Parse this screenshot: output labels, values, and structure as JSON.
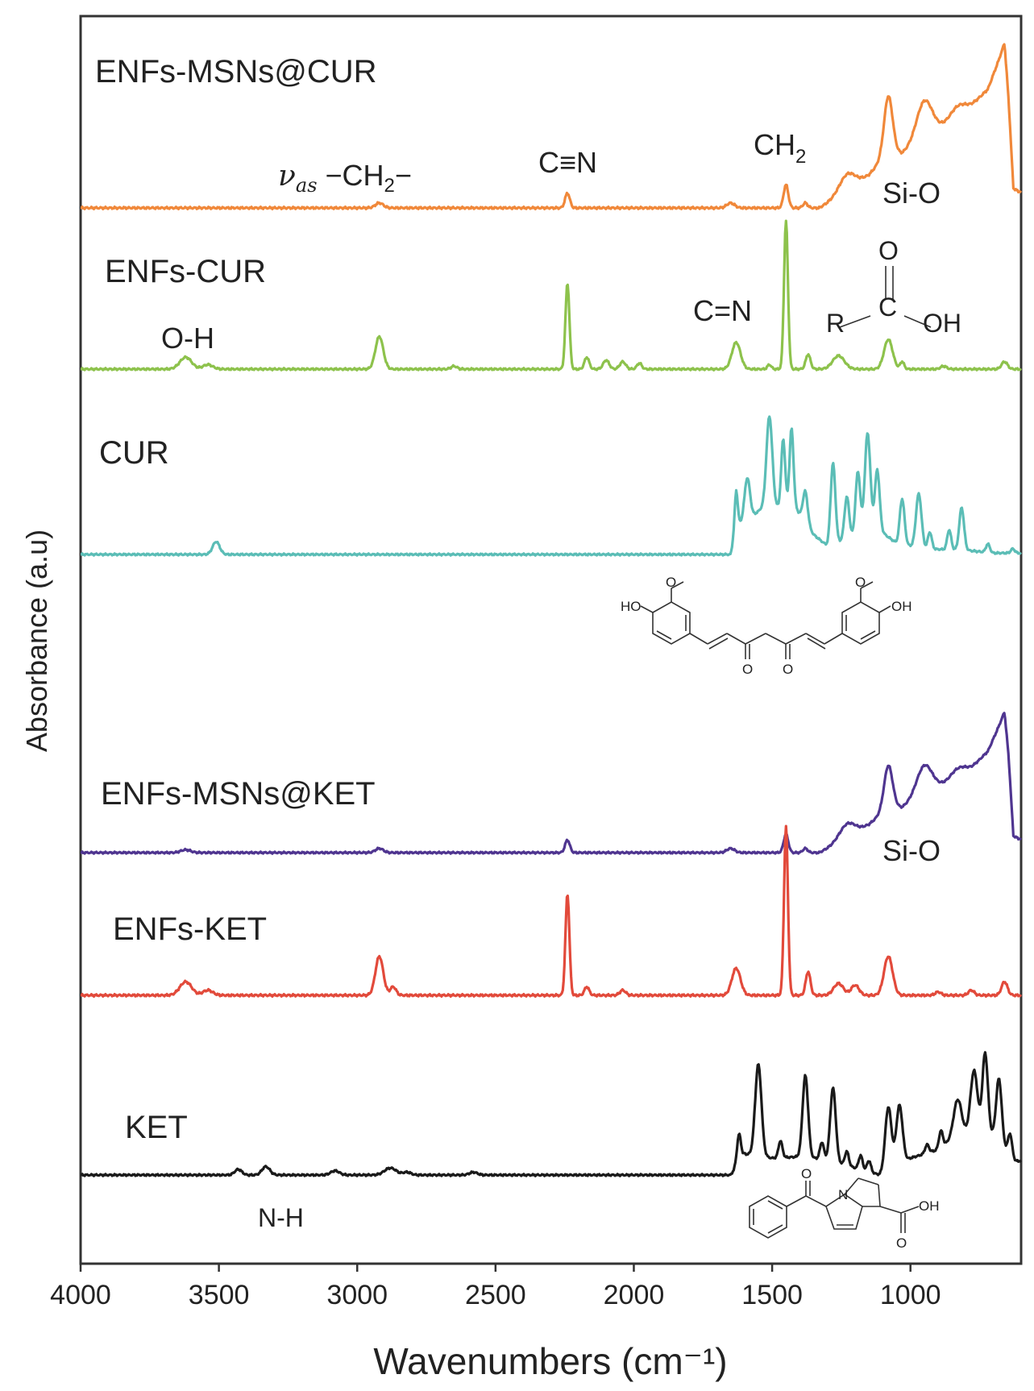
{
  "chart_data": {
    "type": "line",
    "xlabel": "Wavenumbers (cm⁻¹)",
    "ylabel": "Absorbance  (a.u)",
    "xlim": [
      4000,
      600
    ],
    "x_reversed": true,
    "x_ticks": [
      4000,
      3500,
      3000,
      2500,
      2000,
      1500,
      1000
    ],
    "grid": false,
    "legend": "none",
    "stacked_offsets": true,
    "series": [
      {
        "name": "ENFs-MSNs@CUR",
        "color": "#f0883a",
        "baseline": 0.0,
        "height": 0.89,
        "peaks": [
          [
            2920,
            0.03,
            20
          ],
          [
            2240,
            0.09,
            12
          ],
          [
            1650,
            0.03,
            20
          ],
          [
            1450,
            0.14,
            12
          ],
          [
            1380,
            0.03,
            12
          ],
          [
            1230,
            0.1,
            40
          ],
          [
            1080,
            0.34,
            22
          ],
          [
            950,
            0.22,
            40
          ],
          [
            830,
            0.06,
            40
          ]
        ],
        "rise": [
          [
            1330,
            0.0
          ],
          [
            1250,
            0.08
          ],
          [
            1150,
            0.2
          ],
          [
            1080,
            0.34
          ],
          [
            1030,
            0.33
          ],
          [
            950,
            0.43
          ],
          [
            860,
            0.52
          ],
          [
            780,
            0.62
          ],
          [
            720,
            0.72
          ],
          [
            680,
            0.9
          ],
          [
            660,
            1.0
          ],
          [
            645,
            0.65
          ],
          [
            628,
            0.12
          ],
          [
            610,
            0.1
          ]
        ]
      },
      {
        "name": "ENFs-CUR",
        "color": "#8dc24c",
        "baseline": 0.0,
        "height": 0.92,
        "peaks": [
          [
            3620,
            0.08,
            30
          ],
          [
            3540,
            0.03,
            25
          ],
          [
            2920,
            0.22,
            20
          ],
          [
            2650,
            0.02,
            15
          ],
          [
            2240,
            0.58,
            10
          ],
          [
            2170,
            0.08,
            12
          ],
          [
            2100,
            0.06,
            15
          ],
          [
            2040,
            0.05,
            15
          ],
          [
            1980,
            0.04,
            12
          ],
          [
            1630,
            0.18,
            22
          ],
          [
            1510,
            0.03,
            10
          ],
          [
            1450,
            1.0,
            10
          ],
          [
            1370,
            0.1,
            12
          ],
          [
            1260,
            0.09,
            30
          ],
          [
            1080,
            0.2,
            22
          ],
          [
            1030,
            0.05,
            10
          ],
          [
            880,
            0.02,
            15
          ],
          [
            660,
            0.05,
            15
          ]
        ],
        "rise": []
      },
      {
        "name": "CUR",
        "color": "#5bbdb6",
        "baseline": 0.0,
        "height": 0.88,
        "peaks": [
          [
            3510,
            0.09,
            18
          ],
          [
            1630,
            0.25,
            8
          ],
          [
            1590,
            0.3,
            14
          ],
          [
            1510,
            0.65,
            15
          ],
          [
            1460,
            0.48,
            10
          ],
          [
            1430,
            0.55,
            10
          ],
          [
            1380,
            0.22,
            12
          ],
          [
            1280,
            0.57,
            12
          ],
          [
            1230,
            0.3,
            12
          ],
          [
            1190,
            0.45,
            12
          ],
          [
            1155,
            0.7,
            14
          ],
          [
            1120,
            0.42,
            12
          ],
          [
            1030,
            0.32,
            12
          ],
          [
            970,
            0.38,
            14
          ],
          [
            930,
            0.12,
            10
          ],
          [
            860,
            0.14,
            10
          ],
          [
            815,
            0.3,
            12
          ],
          [
            720,
            0.06,
            10
          ],
          [
            630,
            0.03,
            10
          ]
        ],
        "rise": [
          [
            1650,
            0.0
          ],
          [
            1630,
            0.2
          ],
          [
            1590,
            0.24
          ],
          [
            1540,
            0.32
          ],
          [
            1420,
            0.34
          ],
          [
            1350,
            0.14
          ],
          [
            1300,
            0.06
          ],
          [
            1120,
            0.18
          ],
          [
            1050,
            0.08
          ],
          [
            950,
            0.04
          ],
          [
            800,
            0.03
          ],
          [
            700,
            0.01
          ]
        ]
      },
      {
        "name": "ENFs-MSNs@KET",
        "color": "#4f3590",
        "baseline": 0.0,
        "height": 0.92,
        "peaks": [
          [
            3620,
            0.02,
            25
          ],
          [
            2920,
            0.03,
            20
          ],
          [
            2240,
            0.09,
            12
          ],
          [
            1650,
            0.03,
            20
          ],
          [
            1450,
            0.13,
            12
          ],
          [
            1380,
            0.03,
            12
          ],
          [
            1230,
            0.1,
            40
          ],
          [
            1080,
            0.3,
            22
          ],
          [
            950,
            0.2,
            40
          ],
          [
            830,
            0.06,
            40
          ]
        ],
        "rise": [
          [
            1330,
            0.0
          ],
          [
            1250,
            0.08
          ],
          [
            1150,
            0.2
          ],
          [
            1080,
            0.32
          ],
          [
            1030,
            0.32
          ],
          [
            950,
            0.42
          ],
          [
            860,
            0.5
          ],
          [
            780,
            0.6
          ],
          [
            720,
            0.72
          ],
          [
            680,
            0.9
          ],
          [
            660,
            1.0
          ],
          [
            645,
            0.68
          ],
          [
            628,
            0.12
          ],
          [
            610,
            0.1
          ]
        ]
      },
      {
        "name": "ENFs-KET",
        "color": "#e24a3b",
        "baseline": 0.0,
        "height": 1.05,
        "peaks": [
          [
            3620,
            0.08,
            30
          ],
          [
            3540,
            0.03,
            25
          ],
          [
            2920,
            0.23,
            20
          ],
          [
            2870,
            0.05,
            15
          ],
          [
            2240,
            0.6,
            10
          ],
          [
            2170,
            0.05,
            12
          ],
          [
            2040,
            0.03,
            15
          ],
          [
            1630,
            0.16,
            22
          ],
          [
            1450,
            1.0,
            10
          ],
          [
            1370,
            0.14,
            12
          ],
          [
            1260,
            0.07,
            25
          ],
          [
            1200,
            0.06,
            20
          ],
          [
            1080,
            0.23,
            22
          ],
          [
            900,
            0.02,
            15
          ],
          [
            780,
            0.03,
            15
          ],
          [
            660,
            0.08,
            15
          ]
        ],
        "rise": []
      },
      {
        "name": "KET",
        "color": "#1a1a1a",
        "baseline": 0.0,
        "height": 0.92,
        "peaks": [
          [
            3430,
            0.04,
            18
          ],
          [
            3330,
            0.06,
            20
          ],
          [
            3080,
            0.03,
            22
          ],
          [
            2880,
            0.05,
            30
          ],
          [
            2820,
            0.02,
            20
          ],
          [
            2580,
            0.02,
            20
          ],
          [
            1620,
            0.2,
            10
          ],
          [
            1550,
            0.65,
            16
          ],
          [
            1470,
            0.12,
            10
          ],
          [
            1380,
            0.58,
            14
          ],
          [
            1320,
            0.12,
            10
          ],
          [
            1280,
            0.52,
            14
          ],
          [
            1230,
            0.1,
            10
          ],
          [
            1180,
            0.1,
            10
          ],
          [
            1150,
            0.08,
            10
          ],
          [
            1080,
            0.45,
            16
          ],
          [
            1040,
            0.42,
            16
          ],
          [
            940,
            0.06,
            10
          ],
          [
            890,
            0.12,
            10
          ],
          [
            830,
            0.25,
            20
          ],
          [
            770,
            0.45,
            18
          ],
          [
            730,
            0.58,
            14
          ],
          [
            680,
            0.45,
            14
          ],
          [
            640,
            0.15,
            10
          ]
        ],
        "rise": [
          [
            1650,
            0.0
          ],
          [
            1600,
            0.15
          ],
          [
            1500,
            0.12
          ],
          [
            1400,
            0.13
          ],
          [
            1300,
            0.11
          ],
          [
            1200,
            0.05
          ],
          [
            1110,
            0.0
          ],
          [
            1000,
            0.12
          ],
          [
            900,
            0.18
          ],
          [
            820,
            0.3
          ],
          [
            700,
            0.28
          ],
          [
            620,
            0.1
          ]
        ]
      }
    ],
    "annotations": [
      {
        "text": "νas −CH₂−",
        "x": 2920
      },
      {
        "text": "C≡N",
        "x": 2240
      },
      {
        "text": "CH₂",
        "x": 1450
      },
      {
        "text": "Si-O",
        "x": 1000
      },
      {
        "text": "C=N",
        "x": 1640
      },
      {
        "text": "O-H",
        "x": 3620
      },
      {
        "text": "Si-O",
        "x": 1000
      },
      {
        "text": "N-H",
        "x": 3330
      }
    ]
  },
  "labels": {
    "series": [
      "ENFs-MSNs@CUR",
      "ENFs-CUR",
      "CUR",
      "ENFs-MSNs@KET",
      "ENFs-KET",
      "KET"
    ],
    "vas_nu": "ν",
    "vas_sub": "as",
    "vas_rest": " −CH",
    "vas_two": "2",
    "vas_end": "−",
    "cn_triple": "C≡N",
    "ch2_main": "CH",
    "ch2_sub": "2",
    "sio_top": "Si-O",
    "cn_double": "C=N",
    "oh": "O-H",
    "sio_bottom": "Si-O",
    "nh": "N-H"
  },
  "structures": {
    "carboxyl": {
      "o": "O",
      "c": "C",
      "r": "R",
      "oh": "OH"
    },
    "curcumin": {
      "ho": "HO",
      "oh": "OH",
      "o1": "O",
      "o2": "O",
      "o3": "O",
      "o4": "O"
    },
    "ketorolac": {
      "o1": "O",
      "n": "N",
      "oh": "OH",
      "o2": "O"
    }
  }
}
